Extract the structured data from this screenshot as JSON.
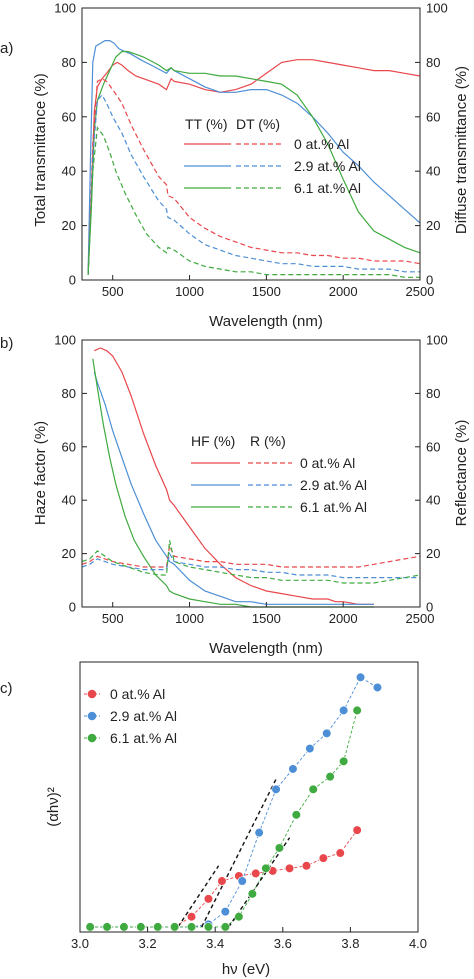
{
  "colors": {
    "red": "#e8474b",
    "blue": "#4d8fd6",
    "green": "#3faa3f",
    "axis": "#222222"
  },
  "chart_data": [
    {
      "panel": "a)",
      "type": "line",
      "xlabel": "Wavelength (nm)",
      "ylabel": "Total transmittance (%)",
      "y2label": "Diffuse transmittance (%)",
      "xlim": [
        300,
        2500
      ],
      "ylim": [
        0,
        100
      ],
      "y2lim": [
        0,
        100
      ],
      "xticks": [
        500,
        1000,
        1500,
        2000,
        2500
      ],
      "yticks": [
        0,
        20,
        40,
        60,
        80,
        100
      ],
      "legend": {
        "header_solid": "TT (%)",
        "header_dashed": "DT (%)",
        "placement": "center",
        "entries": [
          "0 at.% Al",
          "2.9 at.% Al",
          "6.1 at.% Al"
        ]
      },
      "series": [
        {
          "name": "0 at.% Al",
          "kind": "TT",
          "color": "red",
          "dash": false,
          "x": [
            340,
            360,
            380,
            400,
            430,
            460,
            500,
            530,
            560,
            600,
            650,
            700,
            800,
            850,
            880,
            900,
            1000,
            1100,
            1200,
            1300,
            1400,
            1500,
            1600,
            1700,
            1800,
            1900,
            2000,
            2100,
            2200,
            2300,
            2400,
            2500
          ],
          "y": [
            2,
            30,
            62,
            71,
            74,
            76,
            79,
            80,
            79,
            77,
            75,
            74,
            72,
            70,
            74,
            73,
            72,
            70,
            69,
            70,
            72,
            76,
            80,
            81,
            81,
            80,
            79,
            78,
            77,
            77,
            76,
            75
          ]
        },
        {
          "name": "2.9 at.% Al",
          "kind": "TT",
          "color": "blue",
          "dash": false,
          "x": [
            340,
            355,
            370,
            390,
            420,
            450,
            480,
            510,
            540,
            580,
            620,
            680,
            750,
            850,
            880,
            900,
            1000,
            1100,
            1200,
            1300,
            1400,
            1500,
            1600,
            1700,
            1800,
            1900,
            2000,
            2100,
            2200,
            2300,
            2400,
            2500
          ],
          "y": [
            2,
            45,
            80,
            86,
            87,
            88,
            88,
            87,
            85,
            84,
            83,
            81,
            79,
            76,
            78,
            77,
            74,
            71,
            69,
            69,
            70,
            70,
            68,
            65,
            60,
            54,
            47,
            42,
            36,
            31,
            26,
            21
          ]
        },
        {
          "name": "6.1 at.% Al",
          "kind": "TT",
          "color": "green",
          "dash": false,
          "x": [
            340,
            360,
            380,
            400,
            440,
            480,
            520,
            560,
            600,
            650,
            700,
            800,
            850,
            880,
            900,
            1000,
            1100,
            1200,
            1300,
            1400,
            1500,
            1600,
            1700,
            1800,
            1900,
            2000,
            2100,
            2200,
            2300,
            2400,
            2500
          ],
          "y": [
            2,
            25,
            55,
            66,
            72,
            77,
            82,
            84,
            84,
            83,
            82,
            79,
            77,
            78,
            77,
            76,
            76,
            75,
            75,
            74,
            73,
            72,
            68,
            60,
            50,
            37,
            25,
            18,
            15,
            12,
            10
          ]
        },
        {
          "name": "0 at.% Al",
          "kind": "DT",
          "color": "red",
          "dash": true,
          "x": [
            340,
            370,
            400,
            430,
            460,
            500,
            560,
            620,
            700,
            800,
            850,
            860,
            900,
            1000,
            1100,
            1200,
            1300,
            1400,
            1500,
            1600,
            1700,
            1800,
            1900,
            2000,
            2100,
            2200,
            2300,
            2400,
            2500
          ],
          "y": [
            2,
            50,
            73,
            74,
            73,
            70,
            65,
            57,
            48,
            38,
            35,
            31,
            30,
            23,
            19,
            16,
            14,
            12,
            11,
            10,
            10,
            9,
            9,
            8,
            8,
            7,
            7,
            7,
            6
          ]
        },
        {
          "name": "2.9 at.% Al",
          "kind": "DT",
          "color": "blue",
          "dash": true,
          "x": [
            340,
            370,
            400,
            430,
            460,
            500,
            560,
            620,
            700,
            800,
            850,
            860,
            900,
            1000,
            1100,
            1200,
            1300,
            1400,
            1500,
            1600,
            1700,
            1800,
            1900,
            2000,
            2100,
            2200,
            2300,
            2400,
            2500
          ],
          "y": [
            2,
            45,
            66,
            68,
            65,
            60,
            54,
            46,
            38,
            29,
            26,
            23,
            22,
            17,
            13,
            11,
            9,
            8,
            7,
            6,
            6,
            5,
            5,
            5,
            4,
            4,
            4,
            3,
            3
          ]
        },
        {
          "name": "6.1 at.% Al",
          "kind": "DT",
          "color": "green",
          "dash": true,
          "x": [
            340,
            370,
            400,
            440,
            480,
            520,
            580,
            650,
            720,
            800,
            850,
            860,
            900,
            1000,
            1100,
            1200,
            1300,
            1400,
            1500,
            1600,
            1700,
            1800,
            1900,
            2000,
            2100,
            2200,
            2300,
            2400,
            2500
          ],
          "y": [
            2,
            40,
            56,
            53,
            47,
            40,
            32,
            24,
            17,
            12,
            10,
            12,
            11,
            7,
            5,
            4,
            3,
            3,
            2,
            2,
            2,
            2,
            2,
            2,
            2,
            2,
            2,
            1,
            1
          ]
        }
      ]
    },
    {
      "panel": "b)",
      "type": "line",
      "xlabel": "Wavelength (nm)",
      "ylabel": "Haze factor (%)",
      "y2label": "Reflectance (%)",
      "xlim": [
        300,
        2500
      ],
      "ylim": [
        0,
        100
      ],
      "y2lim": [
        0,
        100
      ],
      "xticks": [
        500,
        1000,
        1500,
        2000,
        2500
      ],
      "yticks": [
        0,
        20,
        40,
        60,
        80,
        100
      ],
      "legend": {
        "header_solid": "HF (%)",
        "header_dashed": "R (%)",
        "placement": "center-right",
        "entries": [
          "0 at.% Al",
          "2.9 at.% Al",
          "6.1 at.% Al"
        ]
      },
      "series": [
        {
          "name": "0 at.% Al",
          "kind": "HF",
          "color": "red",
          "dash": false,
          "x": [
            380,
            420,
            460,
            500,
            560,
            620,
            700,
            780,
            850,
            870,
            900,
            1000,
            1100,
            1200,
            1300,
            1400,
            1500,
            1600,
            1700,
            1800,
            1900,
            1950,
            2000,
            2100,
            2200
          ],
          "y": [
            96,
            97,
            96,
            94,
            88,
            79,
            65,
            53,
            44,
            40,
            38,
            30,
            22,
            16,
            11,
            8,
            6,
            5,
            4,
            3,
            3,
            2,
            2,
            1,
            1
          ]
        },
        {
          "name": "2.9 at.% Al",
          "kind": "HF",
          "color": "blue",
          "dash": false,
          "x": [
            380,
            400,
            450,
            500,
            560,
            620,
            700,
            780,
            850,
            870,
            900,
            1000,
            1100,
            1200,
            1300,
            1400,
            1500,
            1600,
            1700,
            1800,
            1900,
            2000,
            2100,
            2200
          ],
          "y": [
            88,
            84,
            76,
            66,
            56,
            46,
            35,
            25,
            19,
            17,
            16,
            10,
            6,
            4,
            2,
            2,
            1,
            1,
            1,
            1,
            1,
            1,
            1,
            1
          ]
        },
        {
          "name": "6.1 at.% Al",
          "kind": "HF",
          "color": "green",
          "dash": false,
          "x": [
            370,
            400,
            440,
            480,
            520,
            580,
            640,
            700,
            780,
            850,
            870,
            900,
            1000,
            1100,
            1200,
            1300,
            1400,
            1500,
            1600,
            1700,
            1800,
            1900,
            2000,
            2100,
            2200
          ],
          "y": [
            93,
            82,
            68,
            56,
            46,
            34,
            25,
            19,
            12,
            8,
            6,
            5,
            3,
            2,
            1,
            1,
            0,
            0,
            0,
            0,
            0,
            0,
            0,
            0,
            0
          ]
        },
        {
          "name": "0 at.% Al",
          "kind": "R",
          "color": "red",
          "dash": true,
          "x": [
            300,
            350,
            400,
            450,
            500,
            600,
            700,
            800,
            850,
            870,
            900,
            1000,
            1100,
            1200,
            1300,
            1400,
            1500,
            1600,
            1700,
            1800,
            1900,
            2000,
            2100,
            2200,
            2300,
            2400,
            2500
          ],
          "y": [
            16,
            17,
            19,
            18,
            17,
            16,
            15,
            15,
            15,
            23,
            19,
            18,
            17,
            17,
            16,
            16,
            16,
            15,
            15,
            15,
            15,
            15,
            15,
            16,
            17,
            18,
            19
          ]
        },
        {
          "name": "2.9 at.% Al",
          "kind": "R",
          "color": "blue",
          "dash": true,
          "x": [
            300,
            350,
            400,
            450,
            500,
            600,
            700,
            800,
            850,
            870,
            900,
            1000,
            1100,
            1200,
            1300,
            1400,
            1500,
            1600,
            1700,
            1800,
            1900,
            2000,
            2100,
            2200,
            2300,
            2400,
            2500
          ],
          "y": [
            15,
            16,
            18,
            17,
            16,
            15,
            14,
            14,
            14,
            20,
            17,
            16,
            15,
            15,
            14,
            14,
            13,
            13,
            12,
            12,
            12,
            11,
            11,
            11,
            11,
            11,
            11
          ]
        },
        {
          "name": "6.1 at.% Al",
          "kind": "R",
          "color": "green",
          "dash": true,
          "x": [
            300,
            350,
            400,
            450,
            500,
            600,
            700,
            800,
            850,
            870,
            900,
            1000,
            1100,
            1200,
            1300,
            1400,
            1500,
            1600,
            1700,
            1800,
            1900,
            2000,
            2100,
            2200,
            2300,
            2400,
            2500
          ],
          "y": [
            17,
            18,
            21,
            19,
            17,
            15,
            13,
            12,
            12,
            25,
            17,
            15,
            14,
            13,
            12,
            11,
            11,
            10,
            10,
            10,
            10,
            9,
            9,
            9,
            10,
            11,
            12
          ]
        }
      ]
    },
    {
      "panel": "c)",
      "type": "scatter",
      "xlabel": "hν (eV)",
      "ylabel": "(αhν)²",
      "xlim": [
        3.0,
        4.0
      ],
      "ylim": [
        0,
        1.06
      ],
      "xticks": [
        3.0,
        3.2,
        3.4,
        3.6,
        3.8,
        4.0
      ],
      "xtick_labels": [
        "3.0",
        "3.2",
        "3.4",
        "3.6",
        "3.8",
        "4.0"
      ],
      "legend": {
        "placement": "top-left",
        "entries": [
          "0 at.% Al",
          "2.9 at.% Al",
          "6.1 at.% Al"
        ]
      },
      "series": [
        {
          "name": "0 at.% Al",
          "color": "red",
          "x": [
            3.03,
            3.08,
            3.13,
            3.18,
            3.23,
            3.28,
            3.33,
            3.38,
            3.42,
            3.47,
            3.52,
            3.57,
            3.62,
            3.67,
            3.72,
            3.77,
            3.82
          ],
          "y": [
            0.02,
            0.02,
            0.02,
            0.02,
            0.02,
            0.02,
            0.06,
            0.13,
            0.2,
            0.22,
            0.23,
            0.24,
            0.25,
            0.26,
            0.29,
            0.31,
            0.4
          ]
        },
        {
          "name": "2.9 at.% Al",
          "color": "blue",
          "x": [
            3.03,
            3.08,
            3.13,
            3.18,
            3.23,
            3.28,
            3.33,
            3.38,
            3.43,
            3.48,
            3.53,
            3.58,
            3.63,
            3.68,
            3.73,
            3.78,
            3.83,
            3.88
          ],
          "y": [
            0.02,
            0.02,
            0.02,
            0.02,
            0.02,
            0.02,
            0.02,
            0.03,
            0.08,
            0.2,
            0.39,
            0.56,
            0.64,
            0.72,
            0.78,
            0.87,
            1.0,
            0.96
          ]
        },
        {
          "name": "6.1 at.% Al",
          "color": "green",
          "x": [
            3.03,
            3.08,
            3.13,
            3.18,
            3.23,
            3.28,
            3.33,
            3.38,
            3.43,
            3.47,
            3.51,
            3.55,
            3.59,
            3.64,
            3.69,
            3.74,
            3.78,
            3.82
          ],
          "y": [
            0.02,
            0.02,
            0.02,
            0.02,
            0.02,
            0.02,
            0.02,
            0.02,
            0.02,
            0.06,
            0.15,
            0.25,
            0.33,
            0.46,
            0.56,
            0.61,
            0.67,
            0.87
          ]
        }
      ],
      "fit_lines": [
        {
          "color": "red",
          "x": [
            3.29,
            3.41
          ],
          "y": [
            0.02,
            0.26
          ]
        },
        {
          "color": "blue",
          "x": [
            3.36,
            3.58
          ],
          "y": [
            0.02,
            0.6
          ]
        },
        {
          "color": "green",
          "x": [
            3.44,
            3.62
          ],
          "y": [
            0.02,
            0.37
          ]
        }
      ]
    }
  ]
}
